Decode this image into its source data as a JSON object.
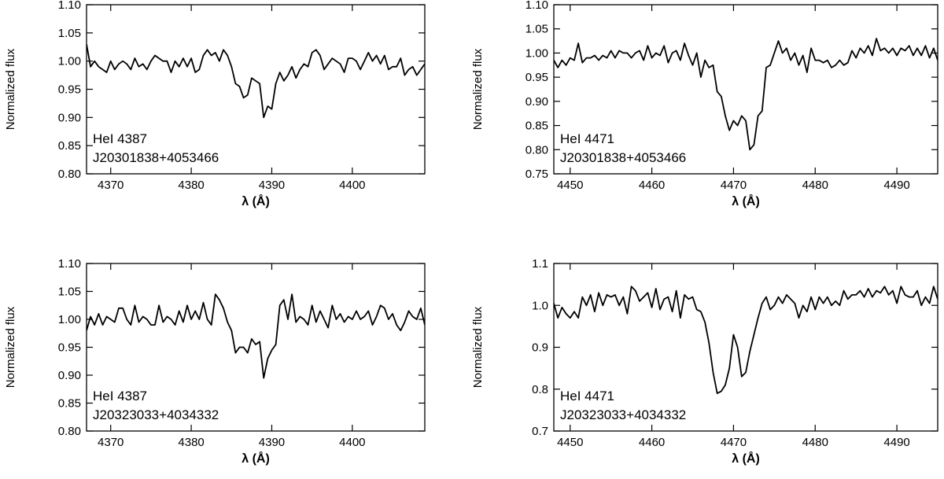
{
  "chart_data": [
    {
      "type": "line",
      "xlabel": "λ (Å)",
      "ylabel": "Normalized flux",
      "xlim": [
        4367,
        4409
      ],
      "ylim": [
        0.8,
        1.1
      ],
      "xticks": [
        4370,
        4380,
        4390,
        4400
      ],
      "xtick_labels": [
        "4370",
        "4380",
        "4390",
        "4400"
      ],
      "yticks": [
        0.8,
        0.85,
        0.9,
        0.95,
        1.0,
        1.05,
        1.1
      ],
      "ytick_labels": [
        "0.80",
        "0.85",
        "0.90",
        "0.95",
        "1.00",
        "1.05",
        "1.10"
      ],
      "annotation": [
        "HeI 4387",
        "J20301838+4053466"
      ],
      "series": [
        {
          "x": [
            4367.0,
            4367.5,
            4368.0,
            4368.5,
            4369.0,
            4369.5,
            4370.0,
            4370.5,
            4371.0,
            4371.5,
            4372.0,
            4372.5,
            4373.0,
            4373.5,
            4374.0,
            4374.5,
            4375.0,
            4375.5,
            4376.0,
            4376.5,
            4377.0,
            4377.5,
            4378.0,
            4378.5,
            4379.0,
            4379.5,
            4380.0,
            4380.5,
            4381.0,
            4381.5,
            4382.0,
            4382.5,
            4383.0,
            4383.5,
            4384.0,
            4384.5,
            4385.0,
            4385.5,
            4386.0,
            4386.5,
            4387.0,
            4387.5,
            4388.0,
            4388.5,
            4389.0,
            4389.5,
            4390.0,
            4390.5,
            4391.0,
            4391.5,
            4392.0,
            4392.5,
            4393.0,
            4393.5,
            4394.0,
            4394.5,
            4395.0,
            4395.5,
            4396.0,
            4396.5,
            4397.0,
            4397.5,
            4398.0,
            4398.5,
            4399.0,
            4399.5,
            4400.0,
            4400.5,
            4401.0,
            4401.5,
            4402.0,
            4402.5,
            4403.0,
            4403.5,
            4404.0,
            4404.5,
            4405.0,
            4405.5,
            4406.0,
            4406.5,
            4407.0,
            4407.5,
            4408.0,
            4408.5,
            4409.0
          ],
          "y": [
            1.03,
            0.99,
            1.0,
            0.99,
            0.985,
            0.98,
            1.0,
            0.985,
            0.995,
            1.0,
            0.995,
            0.985,
            1.005,
            0.99,
            0.995,
            0.985,
            1.0,
            1.01,
            1.005,
            1.0,
            1.0,
            0.98,
            1.0,
            0.99,
            1.005,
            0.99,
            1.005,
            0.98,
            0.985,
            1.01,
            1.02,
            1.01,
            1.015,
            1.0,
            1.02,
            1.01,
            0.99,
            0.96,
            0.955,
            0.935,
            0.94,
            0.97,
            0.965,
            0.96,
            0.9,
            0.92,
            0.915,
            0.96,
            0.98,
            0.965,
            0.975,
            0.99,
            0.97,
            0.985,
            0.995,
            0.99,
            1.015,
            1.02,
            1.01,
            0.985,
            0.995,
            1.005,
            1.0,
            0.995,
            0.98,
            1.005,
            1.005,
            1.0,
            0.985,
            1.0,
            1.015,
            1.0,
            1.01,
            0.995,
            1.01,
            0.985,
            0.99,
            0.99,
            1.005,
            0.975,
            0.985,
            0.99,
            0.975,
            0.985,
            0.995
          ]
        }
      ]
    },
    {
      "type": "line",
      "xlabel": "λ (Å)",
      "ylabel": "Normalized flux",
      "xlim": [
        4448,
        4495
      ],
      "ylim": [
        0.75,
        1.1
      ],
      "xticks": [
        4450,
        4460,
        4470,
        4480,
        4490
      ],
      "xtick_labels": [
        "4450",
        "4460",
        "4470",
        "4480",
        "4490"
      ],
      "yticks": [
        0.75,
        0.8,
        0.85,
        0.9,
        0.95,
        1.0,
        1.05,
        1.1
      ],
      "ytick_labels": [
        "0.75",
        "0.80",
        "0.85",
        "0.90",
        "0.95",
        "1.00",
        "1.05",
        "1.10"
      ],
      "annotation": [
        "HeI 4471",
        "J20301838+4053466"
      ],
      "series": [
        {
          "x": [
            4448.0,
            4448.5,
            4449.0,
            4449.5,
            4450.0,
            4450.5,
            4451.0,
            4451.5,
            4452.0,
            4452.5,
            4453.0,
            4453.5,
            4454.0,
            4454.5,
            4455.0,
            4455.5,
            4456.0,
            4456.5,
            4457.0,
            4457.5,
            4458.0,
            4458.5,
            4459.0,
            4459.5,
            4460.0,
            4460.5,
            4461.0,
            4461.5,
            4462.0,
            4462.5,
            4463.0,
            4463.5,
            4464.0,
            4464.5,
            4465.0,
            4465.5,
            4466.0,
            4466.5,
            4467.0,
            4467.5,
            4468.0,
            4468.5,
            4469.0,
            4469.5,
            4470.0,
            4470.5,
            4471.0,
            4471.5,
            4472.0,
            4472.5,
            4473.0,
            4473.5,
            4474.0,
            4474.5,
            4475.0,
            4475.5,
            4476.0,
            4476.5,
            4477.0,
            4477.5,
            4478.0,
            4478.5,
            4479.0,
            4479.5,
            4480.0,
            4480.5,
            4481.0,
            4481.5,
            4482.0,
            4482.5,
            4483.0,
            4483.5,
            4484.0,
            4484.5,
            4485.0,
            4485.5,
            4486.0,
            4486.5,
            4487.0,
            4487.5,
            4488.0,
            4488.5,
            4489.0,
            4489.5,
            4490.0,
            4490.5,
            4491.0,
            4491.5,
            4492.0,
            4492.5,
            4493.0,
            4493.5,
            4494.0,
            4494.5,
            4495.0
          ],
          "y": [
            0.985,
            0.97,
            0.985,
            0.975,
            0.99,
            0.985,
            1.02,
            0.98,
            0.99,
            0.99,
            0.995,
            0.985,
            0.995,
            0.99,
            1.005,
            0.99,
            1.005,
            1.0,
            1.0,
            0.99,
            1.0,
            1.005,
            0.985,
            1.015,
            0.99,
            1.0,
            0.995,
            1.015,
            0.98,
            1.0,
            1.005,
            0.985,
            1.02,
            0.995,
            0.975,
            1.0,
            0.95,
            0.985,
            0.97,
            0.975,
            0.92,
            0.91,
            0.87,
            0.84,
            0.86,
            0.85,
            0.87,
            0.86,
            0.8,
            0.81,
            0.87,
            0.88,
            0.97,
            0.975,
            1.0,
            1.025,
            1.0,
            1.01,
            0.985,
            1.0,
            0.975,
            0.995,
            0.96,
            1.01,
            0.985,
            0.985,
            0.98,
            0.985,
            0.97,
            0.975,
            0.985,
            0.975,
            0.98,
            1.005,
            0.99,
            1.01,
            1.0,
            1.015,
            0.995,
            1.03,
            1.005,
            1.01,
            1.0,
            1.01,
            0.995,
            1.01,
            1.005,
            1.015,
            0.995,
            1.01,
            0.995,
            1.015,
            0.99,
            1.01,
            0.985
          ]
        }
      ]
    },
    {
      "type": "line",
      "xlabel": "λ (Å)",
      "ylabel": "Normalized flux",
      "xlim": [
        4367,
        4409
      ],
      "ylim": [
        0.8,
        1.1
      ],
      "xticks": [
        4370,
        4380,
        4390,
        4400
      ],
      "xtick_labels": [
        "4370",
        "4380",
        "4390",
        "4400"
      ],
      "yticks": [
        0.8,
        0.85,
        0.9,
        0.95,
        1.0,
        1.05,
        1.1
      ],
      "ytick_labels": [
        "0.80",
        "0.85",
        "0.90",
        "0.95",
        "1.00",
        "1.05",
        "1.10"
      ],
      "annotation": [
        "HeI 4387",
        "J20323033+4034332"
      ],
      "series": [
        {
          "x": [
            4367.0,
            4367.5,
            4368.0,
            4368.5,
            4369.0,
            4369.5,
            4370.0,
            4370.5,
            4371.0,
            4371.5,
            4372.0,
            4372.5,
            4373.0,
            4373.5,
            4374.0,
            4374.5,
            4375.0,
            4375.5,
            4376.0,
            4376.5,
            4377.0,
            4377.5,
            4378.0,
            4378.5,
            4379.0,
            4379.5,
            4380.0,
            4380.5,
            4381.0,
            4381.5,
            4382.0,
            4382.5,
            4383.0,
            4383.5,
            4384.0,
            4384.5,
            4385.0,
            4385.5,
            4386.0,
            4386.5,
            4387.0,
            4387.5,
            4388.0,
            4388.5,
            4389.0,
            4389.5,
            4390.0,
            4390.5,
            4391.0,
            4391.5,
            4392.0,
            4392.5,
            4393.0,
            4393.5,
            4394.0,
            4394.5,
            4395.0,
            4395.5,
            4396.0,
            4396.5,
            4397.0,
            4397.5,
            4398.0,
            4398.5,
            4399.0,
            4399.5,
            4400.0,
            4400.5,
            4401.0,
            4401.5,
            4402.0,
            4402.5,
            4403.0,
            4403.5,
            4404.0,
            4404.5,
            4405.0,
            4405.5,
            4406.0,
            4406.5,
            4407.0,
            4407.5,
            4408.0,
            4408.5,
            4409.0
          ],
          "y": [
            0.98,
            1.005,
            0.99,
            1.01,
            0.99,
            1.005,
            1.0,
            0.995,
            1.02,
            1.02,
            1.0,
            0.99,
            1.025,
            0.995,
            1.005,
            1.0,
            0.99,
            0.99,
            1.025,
            0.995,
            1.005,
            1.0,
            0.99,
            1.015,
            0.995,
            1.025,
            1.0,
            1.015,
            1.0,
            1.03,
            1.0,
            0.99,
            1.045,
            1.035,
            1.02,
            0.995,
            0.98,
            0.94,
            0.95,
            0.95,
            0.94,
            0.965,
            0.955,
            0.96,
            0.895,
            0.93,
            0.945,
            0.955,
            1.025,
            1.035,
            1.0,
            1.045,
            0.995,
            1.005,
            1.0,
            0.99,
            1.025,
            0.995,
            1.015,
            1.0,
            0.985,
            1.025,
            1.0,
            1.01,
            0.995,
            1.005,
            1.0,
            1.015,
            1.0,
            1.005,
            1.015,
            0.99,
            1.005,
            1.025,
            1.02,
            1.0,
            1.01,
            0.99,
            0.98,
            0.995,
            1.015,
            1.005,
            1.0,
            1.02,
            0.99
          ]
        }
      ]
    },
    {
      "type": "line",
      "xlabel": "λ (Å)",
      "ylabel": "Normalized flux",
      "xlim": [
        4448,
        4495
      ],
      "ylim": [
        0.7,
        1.1
      ],
      "xticks": [
        4450,
        4460,
        4470,
        4480,
        4490
      ],
      "xtick_labels": [
        "4450",
        "4460",
        "4470",
        "4480",
        "4490"
      ],
      "yticks": [
        0.7,
        0.8,
        0.9,
        1.0,
        1.1
      ],
      "ytick_labels": [
        "0.7",
        "0.8",
        "0.9",
        "1.0",
        "1.1"
      ],
      "annotation": [
        "HeI 4471",
        "J20323033+4034332"
      ],
      "series": [
        {
          "x": [
            4448.0,
            4448.5,
            4449.0,
            4449.5,
            4450.0,
            4450.5,
            4451.0,
            4451.5,
            4452.0,
            4452.5,
            4453.0,
            4453.5,
            4454.0,
            4454.5,
            4455.0,
            4455.5,
            4456.0,
            4456.5,
            4457.0,
            4457.5,
            4458.0,
            4458.5,
            4459.0,
            4459.5,
            4460.0,
            4460.5,
            4461.0,
            4461.5,
            4462.0,
            4462.5,
            4463.0,
            4463.5,
            4464.0,
            4464.5,
            4465.0,
            4465.5,
            4466.0,
            4466.5,
            4467.0,
            4467.5,
            4468.0,
            4468.5,
            4469.0,
            4469.5,
            4470.0,
            4470.5,
            4471.0,
            4471.5,
            4472.0,
            4472.5,
            4473.0,
            4473.5,
            4474.0,
            4474.5,
            4475.0,
            4475.5,
            4476.0,
            4476.5,
            4477.0,
            4477.5,
            4478.0,
            4478.5,
            4479.0,
            4479.5,
            4480.0,
            4480.5,
            4481.0,
            4481.5,
            4482.0,
            4482.5,
            4483.0,
            4483.5,
            4484.0,
            4484.5,
            4485.0,
            4485.5,
            4486.0,
            4486.5,
            4487.0,
            4487.5,
            4488.0,
            4488.5,
            4489.0,
            4489.5,
            4490.0,
            4490.5,
            4491.0,
            4491.5,
            4492.0,
            4492.5,
            4493.0,
            4493.5,
            4494.0,
            4494.5,
            4495.0
          ],
          "y": [
            1.005,
            0.97,
            0.995,
            0.98,
            0.97,
            0.985,
            0.97,
            1.02,
            1.0,
            1.025,
            0.985,
            1.03,
            1.0,
            1.025,
            1.02,
            1.025,
            1.0,
            1.02,
            0.98,
            1.045,
            1.035,
            1.01,
            1.02,
            1.03,
            0.995,
            1.04,
            0.99,
            1.015,
            1.02,
            0.985,
            1.035,
            0.97,
            1.025,
            1.015,
            1.02,
            0.99,
            0.985,
            0.96,
            0.91,
            0.84,
            0.79,
            0.795,
            0.81,
            0.85,
            0.93,
            0.9,
            0.83,
            0.84,
            0.89,
            0.93,
            0.97,
            1.005,
            1.02,
            0.99,
            1.0,
            1.02,
            1.005,
            1.025,
            1.015,
            1.005,
            0.97,
            1.0,
            0.985,
            1.02,
            0.99,
            1.02,
            1.005,
            1.02,
            1.0,
            1.01,
            1.0,
            1.035,
            1.015,
            1.025,
            1.025,
            1.035,
            1.02,
            1.04,
            1.02,
            1.035,
            1.03,
            1.045,
            1.025,
            1.035,
            1.005,
            1.045,
            1.025,
            1.02,
            1.02,
            1.035,
            1.0,
            1.02,
            1.005,
            1.045,
            1.015
          ]
        }
      ]
    }
  ]
}
